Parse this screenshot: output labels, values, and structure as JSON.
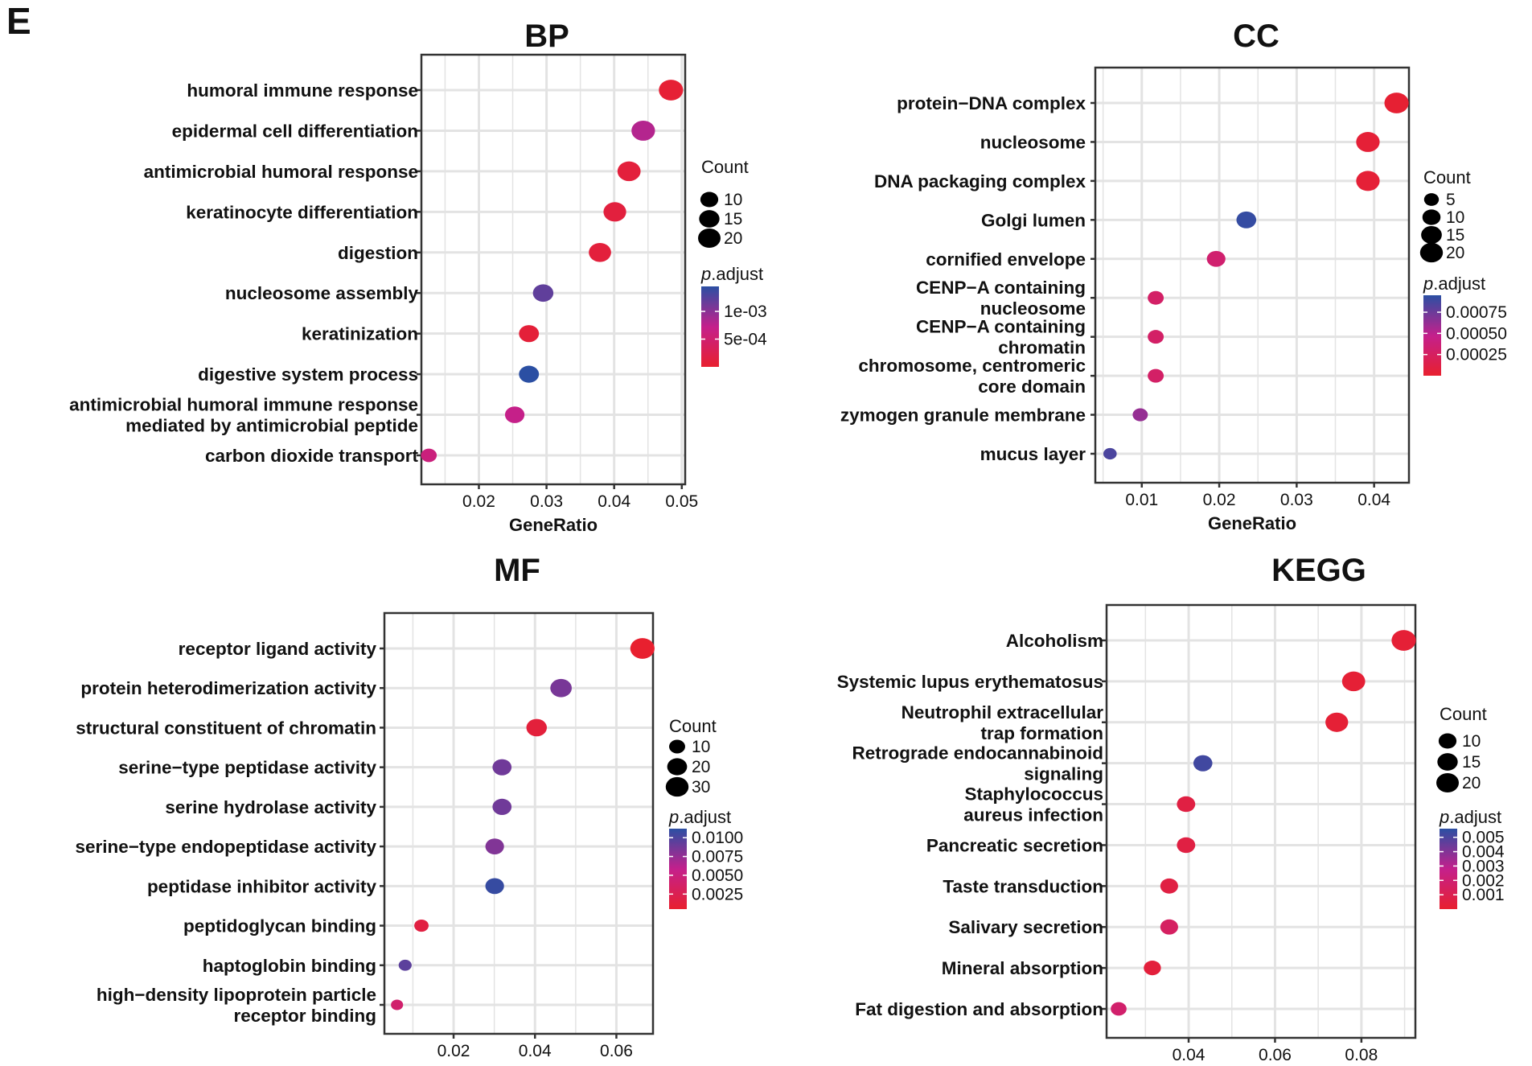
{
  "figure_label": "E",
  "chart_data": [
    {
      "id": "bp",
      "type": "scatter",
      "title": "BP",
      "xlabel": "GeneRatio",
      "xlim": [
        0.0115,
        0.0505
      ],
      "xticks": [
        0.02,
        0.03,
        0.04,
        0.05
      ],
      "xtick_labels": [
        "0.02",
        "0.03",
        "0.04",
        "0.05"
      ],
      "grid": true,
      "categories": [
        [
          "humoral immune response"
        ],
        [
          "epidermal cell differentiation"
        ],
        [
          "antimicrobial humoral response"
        ],
        [
          "keratinocyte differentiation"
        ],
        [
          "digestion"
        ],
        [
          "nucleosome assembly"
        ],
        [
          "keratinization"
        ],
        [
          "digestive system process"
        ],
        [
          "antimicrobial humoral immune response",
          "mediated by antimicrobial peptide"
        ],
        [
          "carbon dioxide transport"
        ]
      ],
      "x": [
        0.0484,
        0.0443,
        0.0422,
        0.0401,
        0.0379,
        0.0295,
        0.0274,
        0.0274,
        0.0253,
        0.0126
      ],
      "count": [
        23,
        21,
        20,
        19,
        18,
        14,
        13,
        13,
        12,
        6
      ],
      "p_adjust": [
        5e-05,
        0.0008,
        0.0001,
        0.00012,
        0.0001,
        0.0012,
        8e-05,
        0.0016,
        0.0007,
        0.0006
      ],
      "size_legend": {
        "title": "Count",
        "values": [
          10,
          15,
          20
        ],
        "labels": [
          "10",
          "15",
          "20"
        ]
      },
      "color_legend": {
        "title_italic": "p",
        "title_rest": ".adjust",
        "range": [
          0.0,
          0.00145
        ],
        "ticks": [
          0.0005,
          0.001
        ],
        "tick_labels": [
          "5e-04",
          "1e-03"
        ]
      }
    },
    {
      "id": "cc",
      "type": "scatter",
      "title": "CC",
      "xlabel": "GeneRatio",
      "xlim": [
        0.004,
        0.0445
      ],
      "xticks": [
        0.01,
        0.02,
        0.03,
        0.04
      ],
      "xtick_labels": [
        "0.01",
        "0.02",
        "0.03",
        "0.04"
      ],
      "grid": true,
      "categories": [
        [
          "protein−DNA complex"
        ],
        [
          "nucleosome"
        ],
        [
          "DNA packaging complex"
        ],
        [
          "Golgi lumen"
        ],
        [
          "cornified envelope"
        ],
        [
          "CENP−A containing",
          "nucleosome"
        ],
        [
          "CENP−A containing",
          "chromatin"
        ],
        [
          "chromosome, centromeric",
          "core domain"
        ],
        [
          "zymogen granule membrane"
        ],
        [
          "mucus layer"
        ]
      ],
      "x": [
        0.0429,
        0.0392,
        0.0392,
        0.0235,
        0.0196,
        0.0118,
        0.0118,
        0.0118,
        0.0098,
        0.0059
      ],
      "count": [
        22,
        20,
        20,
        12,
        10,
        6,
        6,
        6,
        5,
        3
      ],
      "p_adjust": [
        2e-05,
        4e-05,
        4e-05,
        0.00092,
        0.00032,
        0.00028,
        0.00028,
        0.00028,
        0.00062,
        0.00085
      ],
      "size_legend": {
        "title": "Count",
        "values": [
          5,
          10,
          15,
          20
        ],
        "labels": [
          "5",
          "10",
          "15",
          "20"
        ]
      },
      "color_legend": {
        "title_italic": "p",
        "title_rest": ".adjust",
        "range": [
          0.0,
          0.00095
        ],
        "ticks": [
          0.00025,
          0.0005,
          0.00075
        ],
        "tick_labels": [
          "0.00025",
          "0.00050",
          "0.00075"
        ]
      }
    },
    {
      "id": "mf",
      "type": "scatter",
      "title": "MF",
      "xlabel": "GeneRatio",
      "xlim": [
        0.003,
        0.069
      ],
      "xticks": [
        0.02,
        0.04,
        0.06
      ],
      "xtick_labels": [
        "0.02",
        "0.04",
        "0.06"
      ],
      "grid": true,
      "categories": [
        [
          "receptor ligand activity"
        ],
        [
          "protein heterodimerization activity"
        ],
        [
          "structural constituent of chromatin"
        ],
        [
          "serine−type peptidase activity"
        ],
        [
          "serine hydrolase activity"
        ],
        [
          "serine−type endopeptidase activity"
        ],
        [
          "peptidase inhibitor activity"
        ],
        [
          "peptidoglycan binding"
        ],
        [
          "haptoglobin binding"
        ],
        [
          "high−density lipoprotein particle",
          "receptor binding"
        ]
      ],
      "x": [
        0.0664,
        0.0464,
        0.0404,
        0.0319,
        0.0319,
        0.0301,
        0.0301,
        0.0121,
        0.0081,
        0.0061
      ],
      "count": [
        33,
        23,
        20,
        16,
        16,
        15,
        15,
        6,
        4,
        3
      ],
      "p_adjust": [
        0.0005,
        0.0085,
        0.0012,
        0.0088,
        0.0088,
        0.0082,
        0.0108,
        0.0016,
        0.0095,
        0.004
      ],
      "size_legend": {
        "title": "Count",
        "values": [
          10,
          20,
          30
        ],
        "labels": [
          "10",
          "20",
          "30"
        ]
      },
      "color_legend": {
        "title_italic": "p",
        "title_rest": ".adjust",
        "range": [
          0.0005,
          0.0112
        ],
        "ticks": [
          0.0025,
          0.005,
          0.0075,
          0.01
        ],
        "tick_labels": [
          "0.0025",
          "0.0050",
          "0.0075",
          "0.0100"
        ]
      }
    },
    {
      "id": "kegg",
      "type": "scatter",
      "title": "KEGG",
      "xlabel": "GeneRatio",
      "xlim": [
        0.021,
        0.0925
      ],
      "xticks": [
        0.04,
        0.06,
        0.08
      ],
      "xtick_labels": [
        "0.04",
        "0.06",
        "0.08"
      ],
      "grid": true,
      "categories": [
        [
          "Alcoholism"
        ],
        [
          "Systemic lupus erythematosus"
        ],
        [
          "Neutrophil extracellular",
          "trap formation"
        ],
        [
          "Retrograde endocannabinoid",
          "signaling"
        ],
        [
          "Staphylococcus",
          "aureus infection"
        ],
        [
          "Pancreatic secretion"
        ],
        [
          "Taste transduction"
        ],
        [
          "Salivary secretion"
        ],
        [
          "Mineral absorption"
        ],
        [
          "Fat digestion and absorption"
        ]
      ],
      "x": [
        0.0898,
        0.0782,
        0.0743,
        0.0433,
        0.0394,
        0.0394,
        0.0355,
        0.0355,
        0.0316,
        0.0238
      ],
      "count": [
        23,
        20,
        19,
        11,
        10,
        10,
        9,
        9,
        8,
        6
      ],
      "p_adjust": [
        0.0002,
        0.0002,
        0.0002,
        0.0052,
        0.0006,
        0.0006,
        0.0006,
        0.0015,
        0.0004,
        0.0018
      ],
      "size_legend": {
        "title": "Count",
        "values": [
          10,
          15,
          20
        ],
        "labels": [
          "10",
          "15",
          "20"
        ]
      },
      "color_legend": {
        "title_italic": "p",
        "title_rest": ".adjust",
        "range": [
          0.0,
          0.0056
        ],
        "ticks": [
          0.001,
          0.002,
          0.003,
          0.004,
          0.005
        ],
        "tick_labels": [
          "0.001",
          "0.002",
          "0.003",
          "0.004",
          "0.005"
        ]
      }
    }
  ],
  "colors": {
    "low_p": "#e8202f",
    "high_p": "#2b4fa3",
    "grid": "#e3e3e3",
    "frame": "#333333"
  }
}
